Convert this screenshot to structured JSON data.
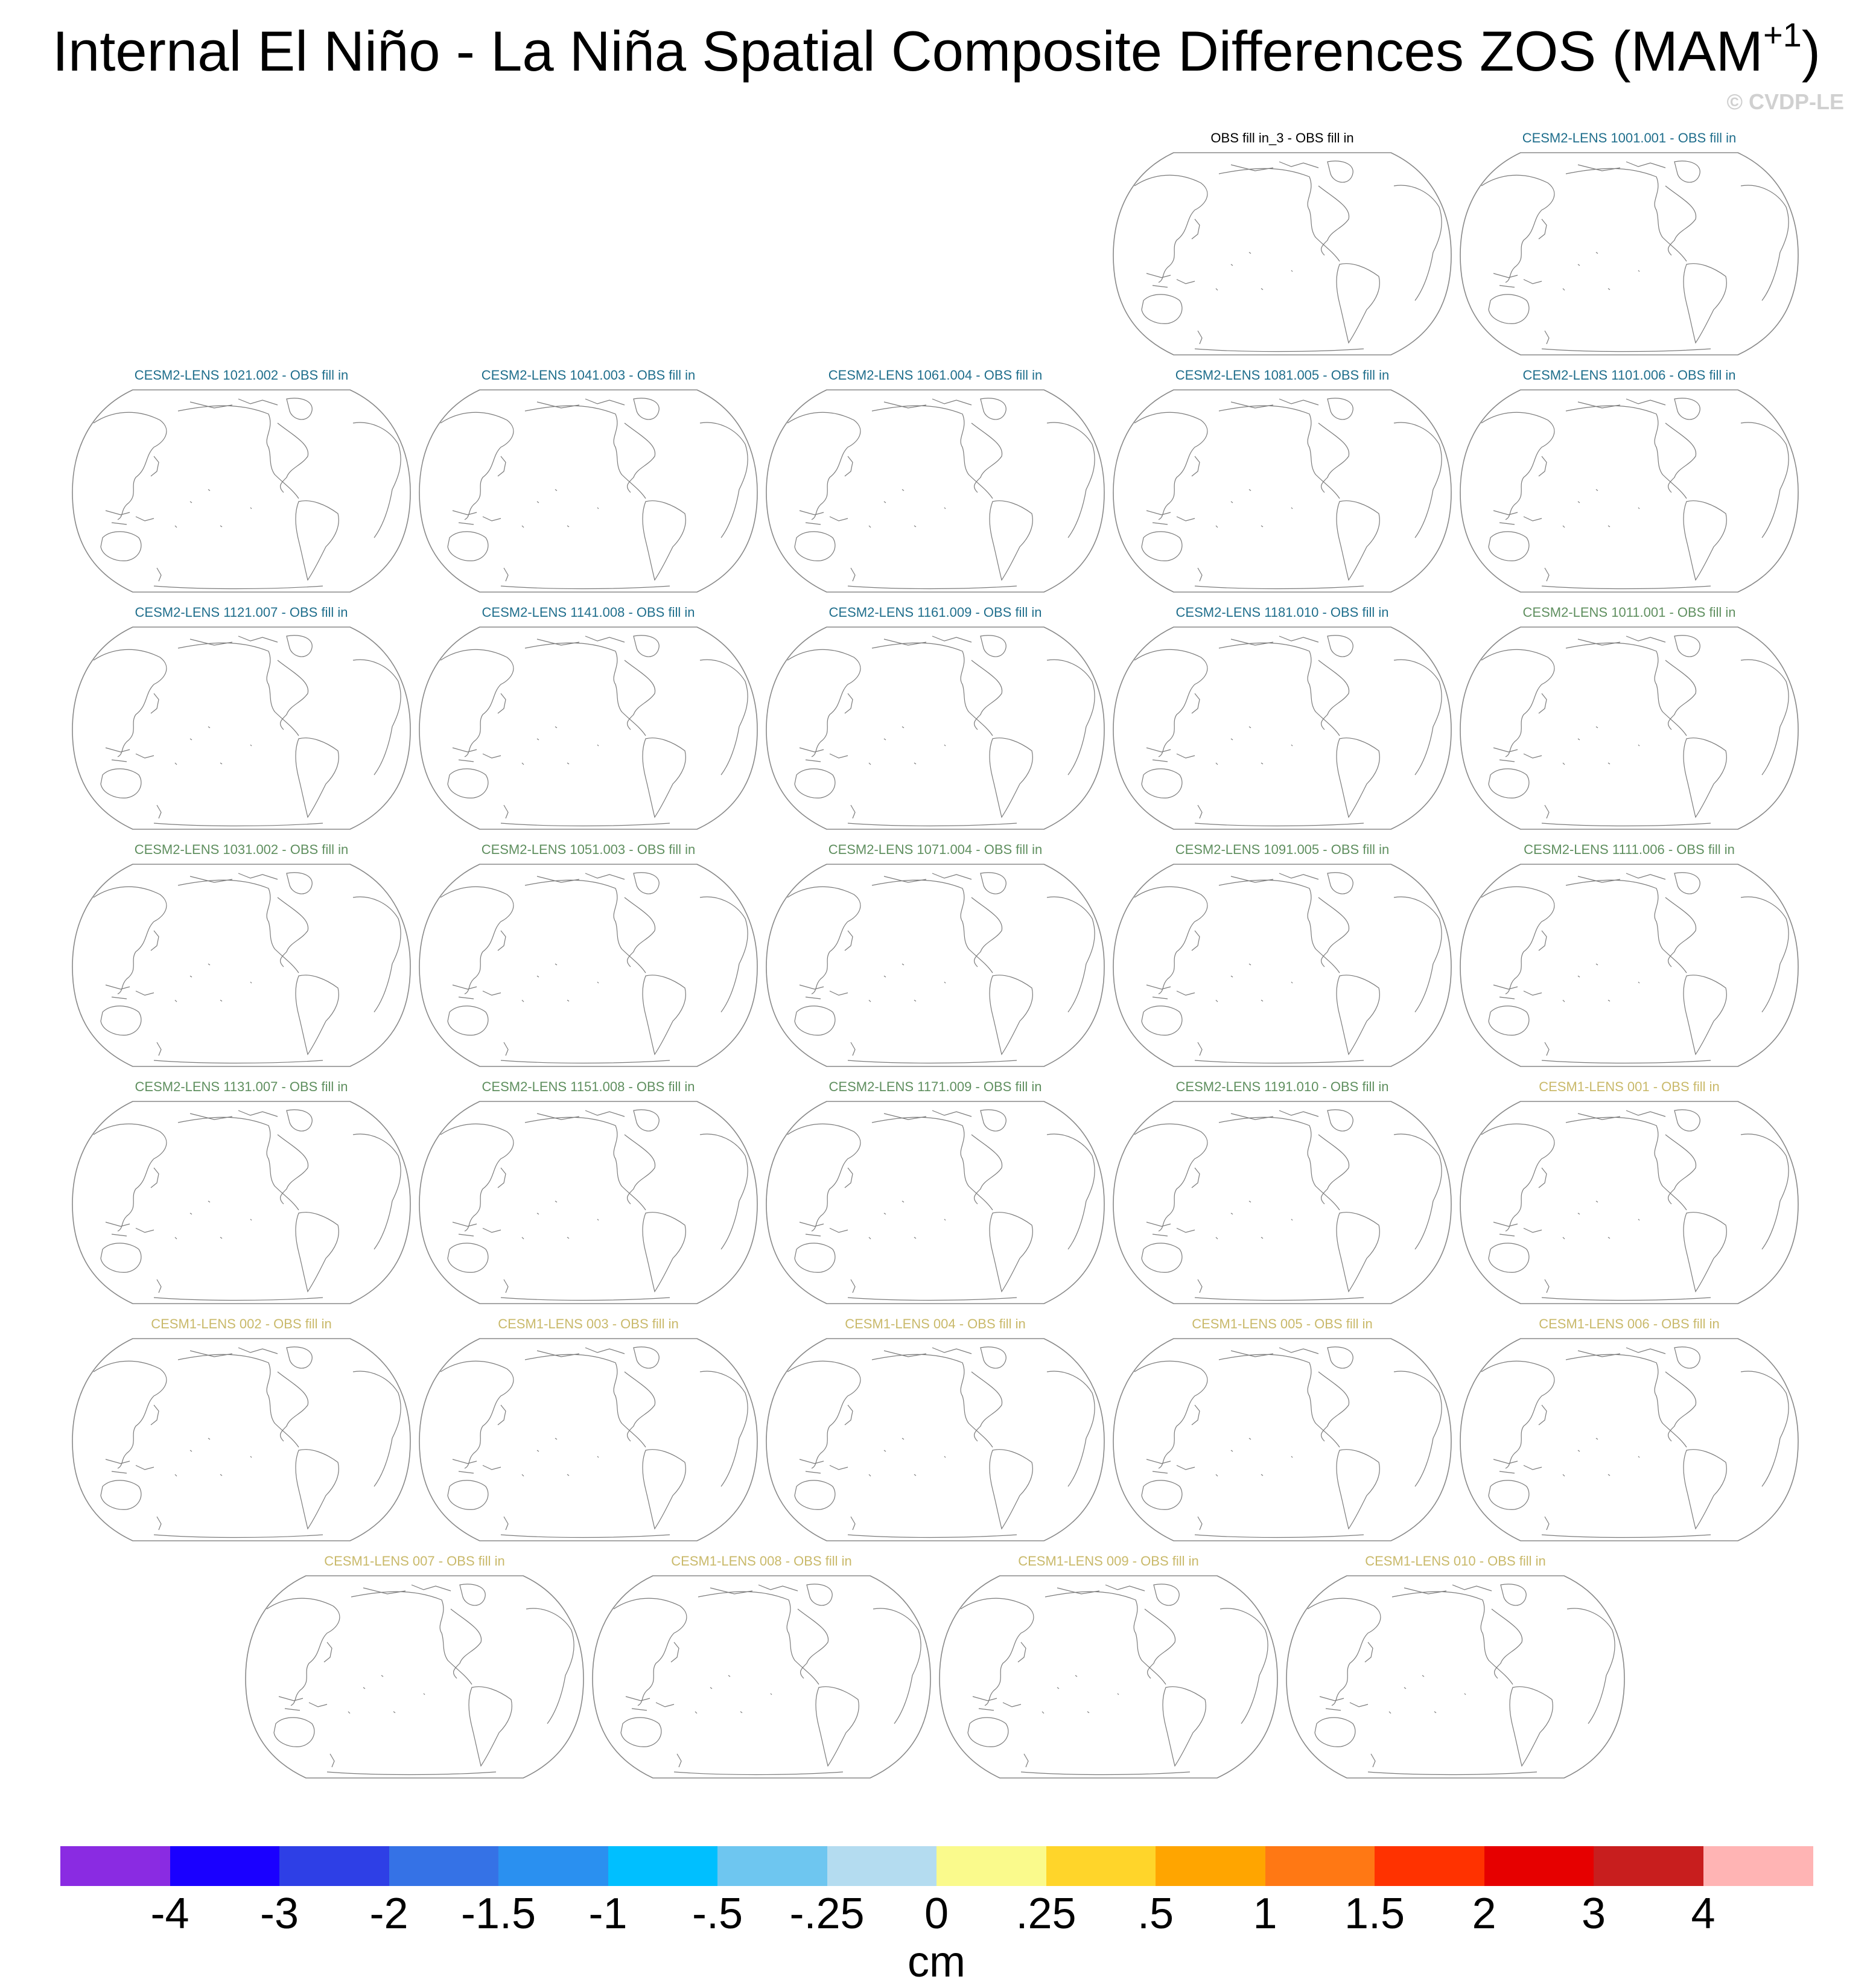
{
  "title": {
    "main": "Internal El Niño - La Niña Spatial Composite Differences ZOS (MAM",
    "sup": "+1",
    "close": ")"
  },
  "copyright": "© CVDP-LE",
  "panels": [
    {
      "title": "OBS fill in_3 - OBS fill in",
      "color": "#000000"
    },
    {
      "title": "CESM2-LENS 1001.001 - OBS fill in",
      "color": "#1f6e8c"
    },
    {
      "title": "CESM2-LENS 1021.002 - OBS fill in",
      "color": "#1f6e8c"
    },
    {
      "title": "CESM2-LENS 1041.003 - OBS fill in",
      "color": "#1f6e8c"
    },
    {
      "title": "CESM2-LENS 1061.004 - OBS fill in",
      "color": "#1f6e8c"
    },
    {
      "title": "CESM2-LENS 1081.005 - OBS fill in",
      "color": "#1f6e8c"
    },
    {
      "title": "CESM2-LENS 1101.006 - OBS fill in",
      "color": "#1f6e8c"
    },
    {
      "title": "CESM2-LENS 1121.007 - OBS fill in",
      "color": "#1f6e8c"
    },
    {
      "title": "CESM2-LENS 1141.008 - OBS fill in",
      "color": "#1f6e8c"
    },
    {
      "title": "CESM2-LENS 1161.009 - OBS fill in",
      "color": "#1f6e8c"
    },
    {
      "title": "CESM2-LENS 1181.010 - OBS fill in",
      "color": "#1f6e8c"
    },
    {
      "title": "CESM2-LENS 1011.001 - OBS fill in",
      "color": "#5f8f5f"
    },
    {
      "title": "CESM2-LENS 1031.002 - OBS fill in",
      "color": "#5f8f5f"
    },
    {
      "title": "CESM2-LENS 1051.003 - OBS fill in",
      "color": "#5f8f5f"
    },
    {
      "title": "CESM2-LENS 1071.004 - OBS fill in",
      "color": "#5f8f5f"
    },
    {
      "title": "CESM2-LENS 1091.005 - OBS fill in",
      "color": "#5f8f5f"
    },
    {
      "title": "CESM2-LENS 1111.006 - OBS fill in",
      "color": "#5f8f5f"
    },
    {
      "title": "CESM2-LENS 1131.007 - OBS fill in",
      "color": "#5f8f5f"
    },
    {
      "title": "CESM2-LENS 1151.008 - OBS fill in",
      "color": "#5f8f5f"
    },
    {
      "title": "CESM2-LENS 1171.009 - OBS fill in",
      "color": "#5f8f5f"
    },
    {
      "title": "CESM2-LENS 1191.010 - OBS fill in",
      "color": "#5f8f5f"
    },
    {
      "title": "CESM1-LENS 001 - OBS fill in",
      "color": "#c9b96a"
    },
    {
      "title": "CESM1-LENS 002 - OBS fill in",
      "color": "#c9b96a"
    },
    {
      "title": "CESM1-LENS 003 - OBS fill in",
      "color": "#c9b96a"
    },
    {
      "title": "CESM1-LENS 004 - OBS fill in",
      "color": "#c9b96a"
    },
    {
      "title": "CESM1-LENS 005 - OBS fill in",
      "color": "#c9b96a"
    },
    {
      "title": "CESM1-LENS 006 - OBS fill in",
      "color": "#c9b96a"
    },
    {
      "title": "CESM1-LENS 007 - OBS fill in",
      "color": "#c9b96a"
    },
    {
      "title": "CESM1-LENS 008 - OBS fill in",
      "color": "#c9b96a"
    },
    {
      "title": "CESM1-LENS 009 - OBS fill in",
      "color": "#c9b96a"
    },
    {
      "title": "CESM1-LENS 010 - OBS fill in",
      "color": "#c9b96a"
    }
  ],
  "colorbar": {
    "colors": [
      "#8a2be2",
      "#1a00ff",
      "#2e3fe6",
      "#3572e6",
      "#2a90f0",
      "#00bfff",
      "#6ec6f0",
      "#b4dcf0",
      "#fafa8c",
      "#ffd52a",
      "#ffa500",
      "#ff7814",
      "#ff3200",
      "#e60000",
      "#c81e1e",
      "#ffb4b4"
    ],
    "labels": [
      "-4",
      "-3",
      "-2",
      "-1.5",
      "-1",
      "-.5",
      "-.25",
      "0",
      ".25",
      ".5",
      "1",
      "1.5",
      "2",
      "3",
      "4"
    ],
    "units": "cm"
  }
}
